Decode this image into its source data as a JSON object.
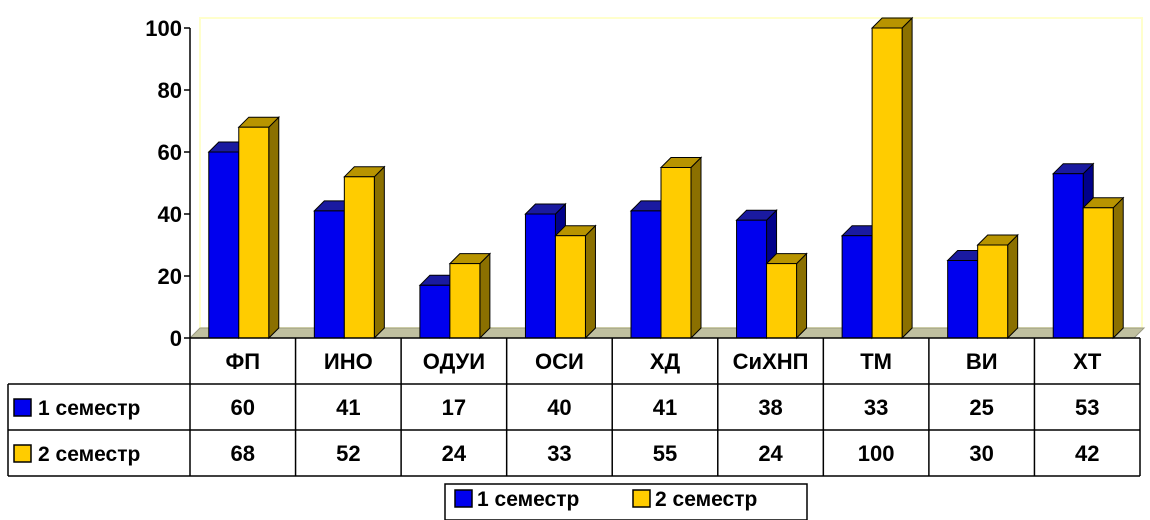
{
  "chart_data": {
    "type": "bar",
    "categories": [
      "ФП",
      "ИНО",
      "ОДУИ",
      "ОСИ",
      "ХД",
      "СиХНП",
      "ТМ",
      "ВИ",
      "ХТ"
    ],
    "series": [
      {
        "name": "1 семестр",
        "values": [
          60,
          41,
          17,
          40,
          41,
          38,
          33,
          25,
          53
        ]
      },
      {
        "name": "2 семестр",
        "values": [
          68,
          52,
          24,
          33,
          55,
          24,
          100,
          30,
          42
        ]
      }
    ],
    "ylim": [
      0,
      100
    ],
    "yticks": [
      0,
      20,
      40,
      60,
      80,
      100
    ],
    "grid": false,
    "data_table": true,
    "legend_position": "bottom",
    "colors": {
      "series1_front": "#0000ee",
      "series1_side": "#00008b",
      "series1_top": "#1a1aa0",
      "series2_front": "#ffcc00",
      "series2_side": "#8b7000",
      "series2_top": "#b89400",
      "plot_border": "#ffffcc",
      "floor": "#c0c0a0"
    }
  }
}
